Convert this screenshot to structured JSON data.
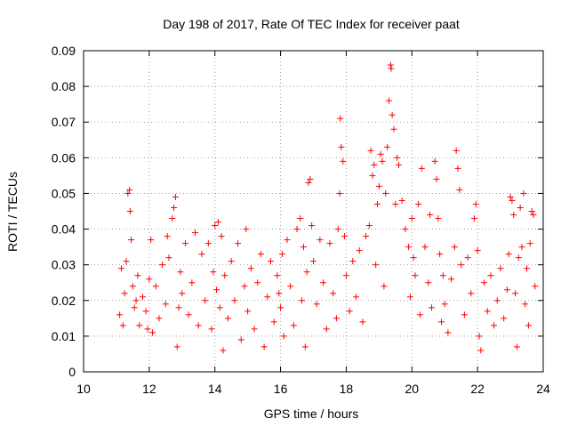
{
  "chart_data": {
    "type": "scatter",
    "title": "Day 198 of 2017, Rate Of TEC Index for receiver paat",
    "xlabel": "GPS time / hours",
    "ylabel": "ROTI / TECUs",
    "xlim": [
      10,
      24
    ],
    "ylim": [
      0,
      0.09
    ],
    "x_ticks": [
      10,
      12,
      14,
      16,
      18,
      20,
      22,
      24
    ],
    "x_tick_labels": [
      "10",
      "12",
      "14",
      "16",
      "18",
      "20",
      "22",
      "24"
    ],
    "y_ticks": [
      0,
      0.01,
      0.02,
      0.03,
      0.04,
      0.05,
      0.06,
      0.07,
      0.08,
      0.09
    ],
    "y_tick_labels": [
      "0",
      "0.01",
      "0.02",
      "0.03",
      "0.04",
      "0.05",
      "0.06",
      "0.07",
      "0.08",
      "0.09"
    ],
    "grid": true,
    "marker": "+",
    "marker_color": "#ff0000",
    "series": [
      {
        "points": [
          [
            11.1,
            0.016
          ],
          [
            11.15,
            0.029
          ],
          [
            11.2,
            0.013
          ],
          [
            11.25,
            0.022
          ],
          [
            11.3,
            0.031
          ],
          [
            11.35,
            0.05
          ],
          [
            11.4,
            0.051
          ],
          [
            11.42,
            0.045
          ],
          [
            11.45,
            0.037
          ],
          [
            11.5,
            0.024
          ],
          [
            11.55,
            0.018
          ],
          [
            11.6,
            0.02
          ],
          [
            11.65,
            0.027
          ],
          [
            11.7,
            0.013
          ],
          [
            11.8,
            0.021
          ],
          [
            11.9,
            0.017
          ],
          [
            11.95,
            0.012
          ],
          [
            12.0,
            0.026
          ],
          [
            12.05,
            0.037
          ],
          [
            12.1,
            0.011
          ],
          [
            12.2,
            0.024
          ],
          [
            12.3,
            0.015
          ],
          [
            12.4,
            0.03
          ],
          [
            12.5,
            0.019
          ],
          [
            12.55,
            0.038
          ],
          [
            12.6,
            0.032
          ],
          [
            12.7,
            0.043
          ],
          [
            12.75,
            0.046
          ],
          [
            12.8,
            0.049
          ],
          [
            12.85,
            0.007
          ],
          [
            12.9,
            0.018
          ],
          [
            12.95,
            0.028
          ],
          [
            13.0,
            0.022
          ],
          [
            13.1,
            0.036
          ],
          [
            13.2,
            0.016
          ],
          [
            13.3,
            0.025
          ],
          [
            13.4,
            0.039
          ],
          [
            13.5,
            0.013
          ],
          [
            13.6,
            0.033
          ],
          [
            13.7,
            0.02
          ],
          [
            13.8,
            0.036
          ],
          [
            13.9,
            0.012
          ],
          [
            13.95,
            0.028
          ],
          [
            14.0,
            0.041
          ],
          [
            14.05,
            0.023
          ],
          [
            14.1,
            0.042
          ],
          [
            14.15,
            0.018
          ],
          [
            14.2,
            0.038
          ],
          [
            14.25,
            0.006
          ],
          [
            14.3,
            0.027
          ],
          [
            14.4,
            0.015
          ],
          [
            14.5,
            0.031
          ],
          [
            14.6,
            0.02
          ],
          [
            14.7,
            0.036
          ],
          [
            14.8,
            0.009
          ],
          [
            14.9,
            0.024
          ],
          [
            14.95,
            0.04
          ],
          [
            15.0,
            0.017
          ],
          [
            15.1,
            0.029
          ],
          [
            15.2,
            0.012
          ],
          [
            15.3,
            0.025
          ],
          [
            15.4,
            0.033
          ],
          [
            15.5,
            0.007
          ],
          [
            15.6,
            0.021
          ],
          [
            15.7,
            0.031
          ],
          [
            15.8,
            0.014
          ],
          [
            15.9,
            0.027
          ],
          [
            15.95,
            0.022
          ],
          [
            16.0,
            0.018
          ],
          [
            16.05,
            0.033
          ],
          [
            16.1,
            0.01
          ],
          [
            16.2,
            0.037
          ],
          [
            16.3,
            0.024
          ],
          [
            16.4,
            0.013
          ],
          [
            16.5,
            0.04
          ],
          [
            16.6,
            0.043
          ],
          [
            16.65,
            0.02
          ],
          [
            16.7,
            0.035
          ],
          [
            16.75,
            0.007
          ],
          [
            16.8,
            0.028
          ],
          [
            16.85,
            0.053
          ],
          [
            16.9,
            0.054
          ],
          [
            16.95,
            0.041
          ],
          [
            17.0,
            0.031
          ],
          [
            17.1,
            0.019
          ],
          [
            17.2,
            0.037
          ],
          [
            17.3,
            0.025
          ],
          [
            17.4,
            0.012
          ],
          [
            17.5,
            0.036
          ],
          [
            17.6,
            0.022
          ],
          [
            17.7,
            0.015
          ],
          [
            17.75,
            0.04
          ],
          [
            17.8,
            0.05
          ],
          [
            17.82,
            0.071
          ],
          [
            17.85,
            0.063
          ],
          [
            17.9,
            0.059
          ],
          [
            17.95,
            0.038
          ],
          [
            18.0,
            0.027
          ],
          [
            18.1,
            0.017
          ],
          [
            18.2,
            0.031
          ],
          [
            18.3,
            0.021
          ],
          [
            18.4,
            0.034
          ],
          [
            18.5,
            0.014
          ],
          [
            18.6,
            0.038
          ],
          [
            18.7,
            0.041
          ],
          [
            18.75,
            0.062
          ],
          [
            18.8,
            0.055
          ],
          [
            18.85,
            0.058
          ],
          [
            18.9,
            0.03
          ],
          [
            18.95,
            0.047
          ],
          [
            19.0,
            0.052
          ],
          [
            19.05,
            0.061
          ],
          [
            19.1,
            0.059
          ],
          [
            19.15,
            0.024
          ],
          [
            19.2,
            0.05
          ],
          [
            19.25,
            0.063
          ],
          [
            19.3,
            0.076
          ],
          [
            19.35,
            0.086
          ],
          [
            19.37,
            0.085
          ],
          [
            19.4,
            0.072
          ],
          [
            19.45,
            0.068
          ],
          [
            19.5,
            0.047
          ],
          [
            19.55,
            0.06
          ],
          [
            19.6,
            0.058
          ],
          [
            19.7,
            0.048
          ],
          [
            19.8,
            0.04
          ],
          [
            19.9,
            0.035
          ],
          [
            19.95,
            0.021
          ],
          [
            20.0,
            0.043
          ],
          [
            20.05,
            0.032
          ],
          [
            20.1,
            0.027
          ],
          [
            20.2,
            0.047
          ],
          [
            20.25,
            0.016
          ],
          [
            20.3,
            0.057
          ],
          [
            20.4,
            0.035
          ],
          [
            20.5,
            0.025
          ],
          [
            20.55,
            0.044
          ],
          [
            20.6,
            0.018
          ],
          [
            20.7,
            0.059
          ],
          [
            20.75,
            0.054
          ],
          [
            20.8,
            0.043
          ],
          [
            20.85,
            0.033
          ],
          [
            20.9,
            0.014
          ],
          [
            20.95,
            0.027
          ],
          [
            21.0,
            0.019
          ],
          [
            21.1,
            0.011
          ],
          [
            21.2,
            0.026
          ],
          [
            21.3,
            0.035
          ],
          [
            21.35,
            0.062
          ],
          [
            21.4,
            0.057
          ],
          [
            21.45,
            0.051
          ],
          [
            21.5,
            0.03
          ],
          [
            21.6,
            0.016
          ],
          [
            21.7,
            0.032
          ],
          [
            21.8,
            0.022
          ],
          [
            21.9,
            0.043
          ],
          [
            21.95,
            0.047
          ],
          [
            22.0,
            0.034
          ],
          [
            22.05,
            0.01
          ],
          [
            22.1,
            0.006
          ],
          [
            22.2,
            0.025
          ],
          [
            22.3,
            0.017
          ],
          [
            22.4,
            0.027
          ],
          [
            22.5,
            0.013
          ],
          [
            22.6,
            0.02
          ],
          [
            22.7,
            0.029
          ],
          [
            22.8,
            0.015
          ],
          [
            22.9,
            0.023
          ],
          [
            22.95,
            0.033
          ],
          [
            23.0,
            0.049
          ],
          [
            23.05,
            0.048
          ],
          [
            23.1,
            0.044
          ],
          [
            23.15,
            0.022
          ],
          [
            23.2,
            0.007
          ],
          [
            23.25,
            0.032
          ],
          [
            23.3,
            0.046
          ],
          [
            23.35,
            0.035
          ],
          [
            23.4,
            0.05
          ],
          [
            23.45,
            0.019
          ],
          [
            23.5,
            0.029
          ],
          [
            23.55,
            0.013
          ],
          [
            23.6,
            0.036
          ],
          [
            23.65,
            0.045
          ],
          [
            23.7,
            0.044
          ],
          [
            23.75,
            0.024
          ]
        ]
      }
    ]
  }
}
